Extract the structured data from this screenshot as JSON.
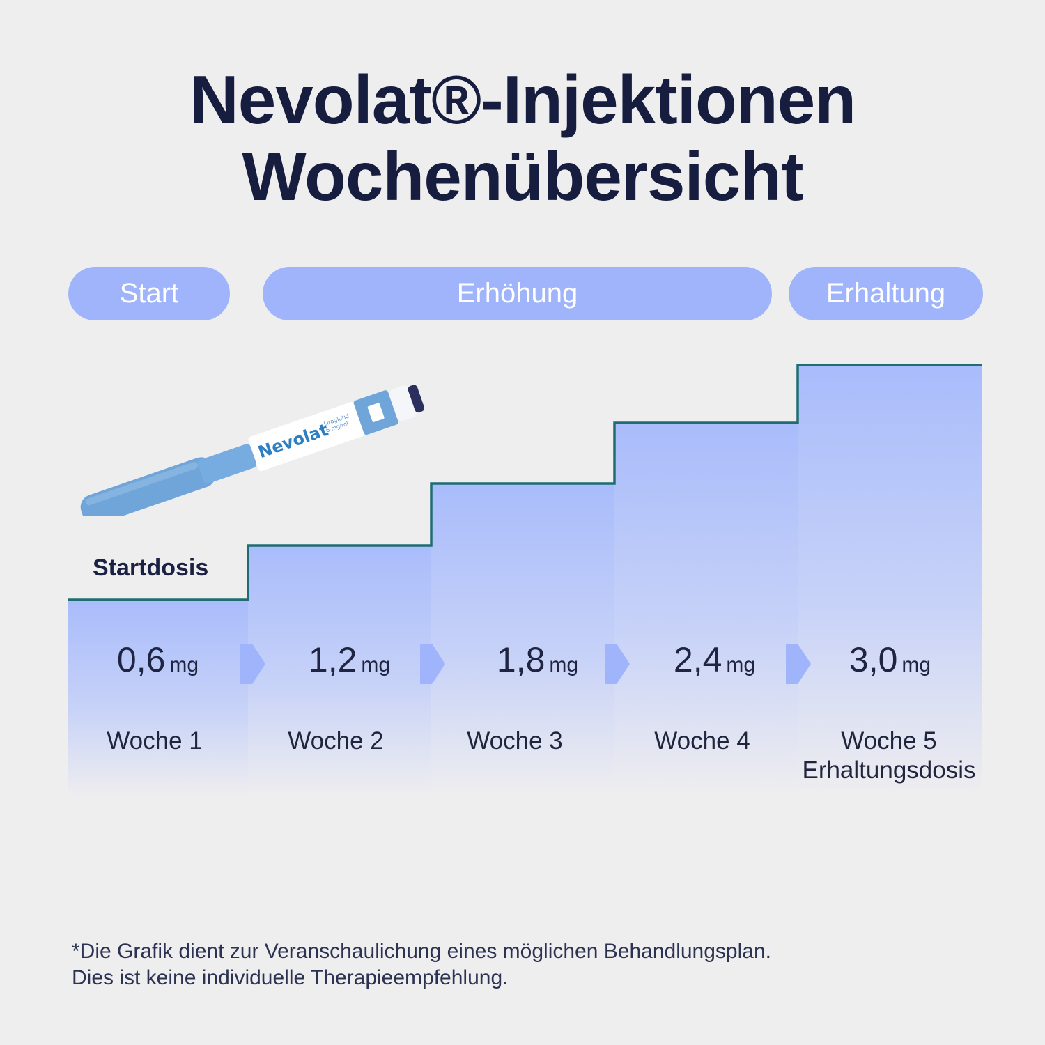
{
  "title": {
    "line1": "Nevolat®-Injektionen",
    "line2": "Wochenübersicht"
  },
  "phases": {
    "start": "Start",
    "increase": "Erhöhung",
    "maintenance": "Erhaltung"
  },
  "start_dose_label": "Startdosis",
  "pen": {
    "brand": "Nevolat",
    "sub1": "Liraglutid",
    "sub2": "6 mg/ml"
  },
  "steps": [
    {
      "value": "0,6",
      "unit": "mg",
      "week": "Woche 1",
      "note": ""
    },
    {
      "value": "1,2",
      "unit": "mg",
      "week": "Woche 2",
      "note": ""
    },
    {
      "value": "1,8",
      "unit": "mg",
      "week": "Woche 3",
      "note": ""
    },
    {
      "value": "2,4",
      "unit": "mg",
      "week": "Woche 4",
      "note": ""
    },
    {
      "value": "3,0",
      "unit": "mg",
      "week": "Woche 5",
      "note": "Erhaltungsdosis"
    }
  ],
  "footnote": {
    "line1": "*Die Grafik dient zur Veranschaulichung eines möglichen Behandlungsplan.",
    "line2": "Dies ist keine individuelle Therapieempfehlung."
  },
  "colors": {
    "title": "#161d3f",
    "pill": "#9fb4fb",
    "stair_line": "#1f6d73",
    "arrow": "#9fb4fb",
    "pen_blue": "#6fa5d8"
  }
}
